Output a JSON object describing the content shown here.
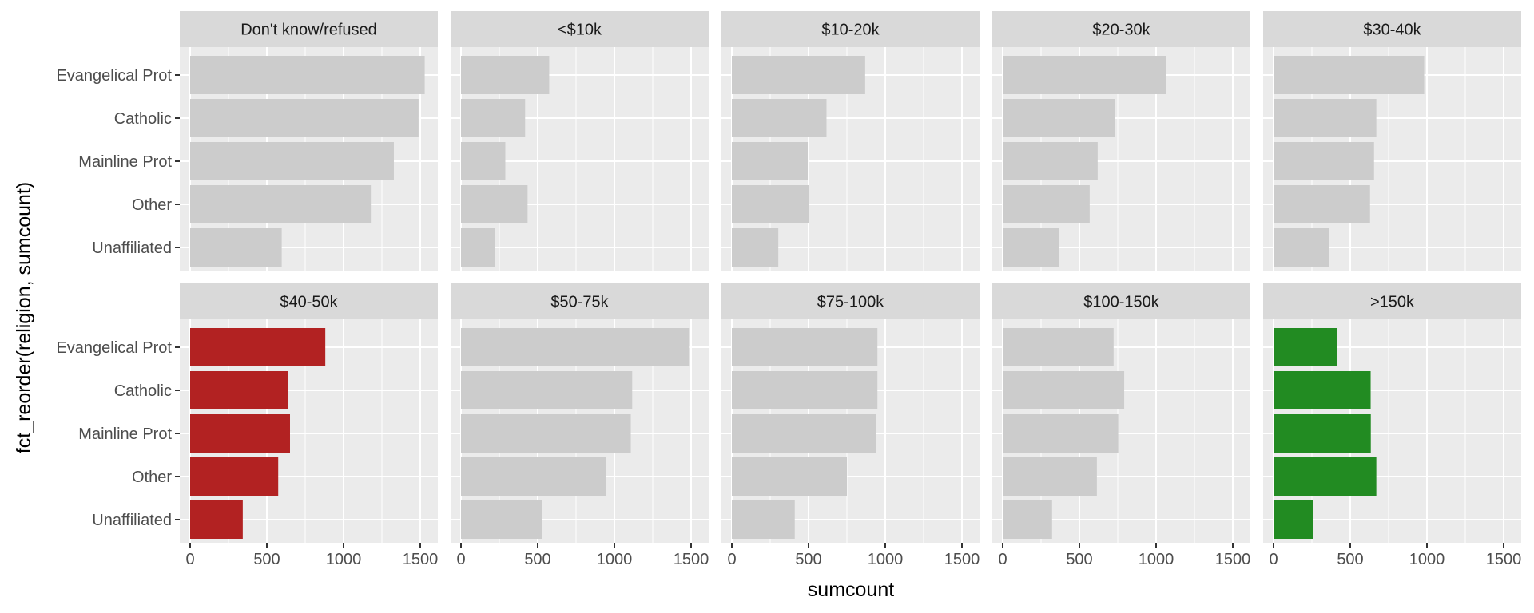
{
  "chart_data": {
    "type": "bar",
    "orientation": "horizontal",
    "facet_layout": "2 rows x 5 columns",
    "xlabel": "sumcount",
    "ylabel": "fct_reorder(religion, sumcount)",
    "xlim": [
      0,
      1600
    ],
    "x_ticks": [
      0,
      500,
      1000,
      1500
    ],
    "x_tick_labels": [
      "0",
      "500",
      "1000",
      "1500"
    ],
    "categories": [
      "Evangelical Prot",
      "Catholic",
      "Mainline Prot",
      "Other",
      "Unaffiliated"
    ],
    "grid": true,
    "legend": "none",
    "colors": {
      "panel_background": "#ebebeb",
      "strip_background": "#d9d9d9",
      "gridline": "#ffffff",
      "default_bar": "#cccccc",
      "highlight_low": "#b22222",
      "highlight_high": "#228b22"
    },
    "facets": [
      {
        "label": "Don't know/refused",
        "values": [
          1529,
          1489,
          1328,
          1178,
          597
        ],
        "bar_color": "#cccccc"
      },
      {
        "label": "<$10k",
        "values": [
          575,
          418,
          289,
          434,
          222
        ],
        "bar_color": "#cccccc"
      },
      {
        "label": "$10-20k",
        "values": [
          869,
          617,
          495,
          503,
          303
        ],
        "bar_color": "#cccccc"
      },
      {
        "label": "$20-30k",
        "values": [
          1064,
          732,
          619,
          567,
          369
        ],
        "bar_color": "#cccccc"
      },
      {
        "label": "$30-40k",
        "values": [
          982,
          670,
          655,
          629,
          364
        ],
        "bar_color": "#cccccc"
      },
      {
        "label": "$40-50k",
        "values": [
          881,
          638,
          651,
          574,
          343
        ],
        "bar_color": "#b22222"
      },
      {
        "label": "$50-75k",
        "values": [
          1486,
          1116,
          1107,
          947,
          531
        ],
        "bar_color": "#cccccc"
      },
      {
        "label": "$75-100k",
        "values": [
          949,
          949,
          939,
          750,
          410
        ],
        "bar_color": "#cccccc"
      },
      {
        "label": "$100-150k",
        "values": [
          723,
          792,
          753,
          614,
          322
        ],
        "bar_color": "#cccccc"
      },
      {
        "label": ">150k",
        "values": [
          414,
          633,
          634,
          670,
          258
        ],
        "bar_color": "#228b22"
      }
    ]
  }
}
